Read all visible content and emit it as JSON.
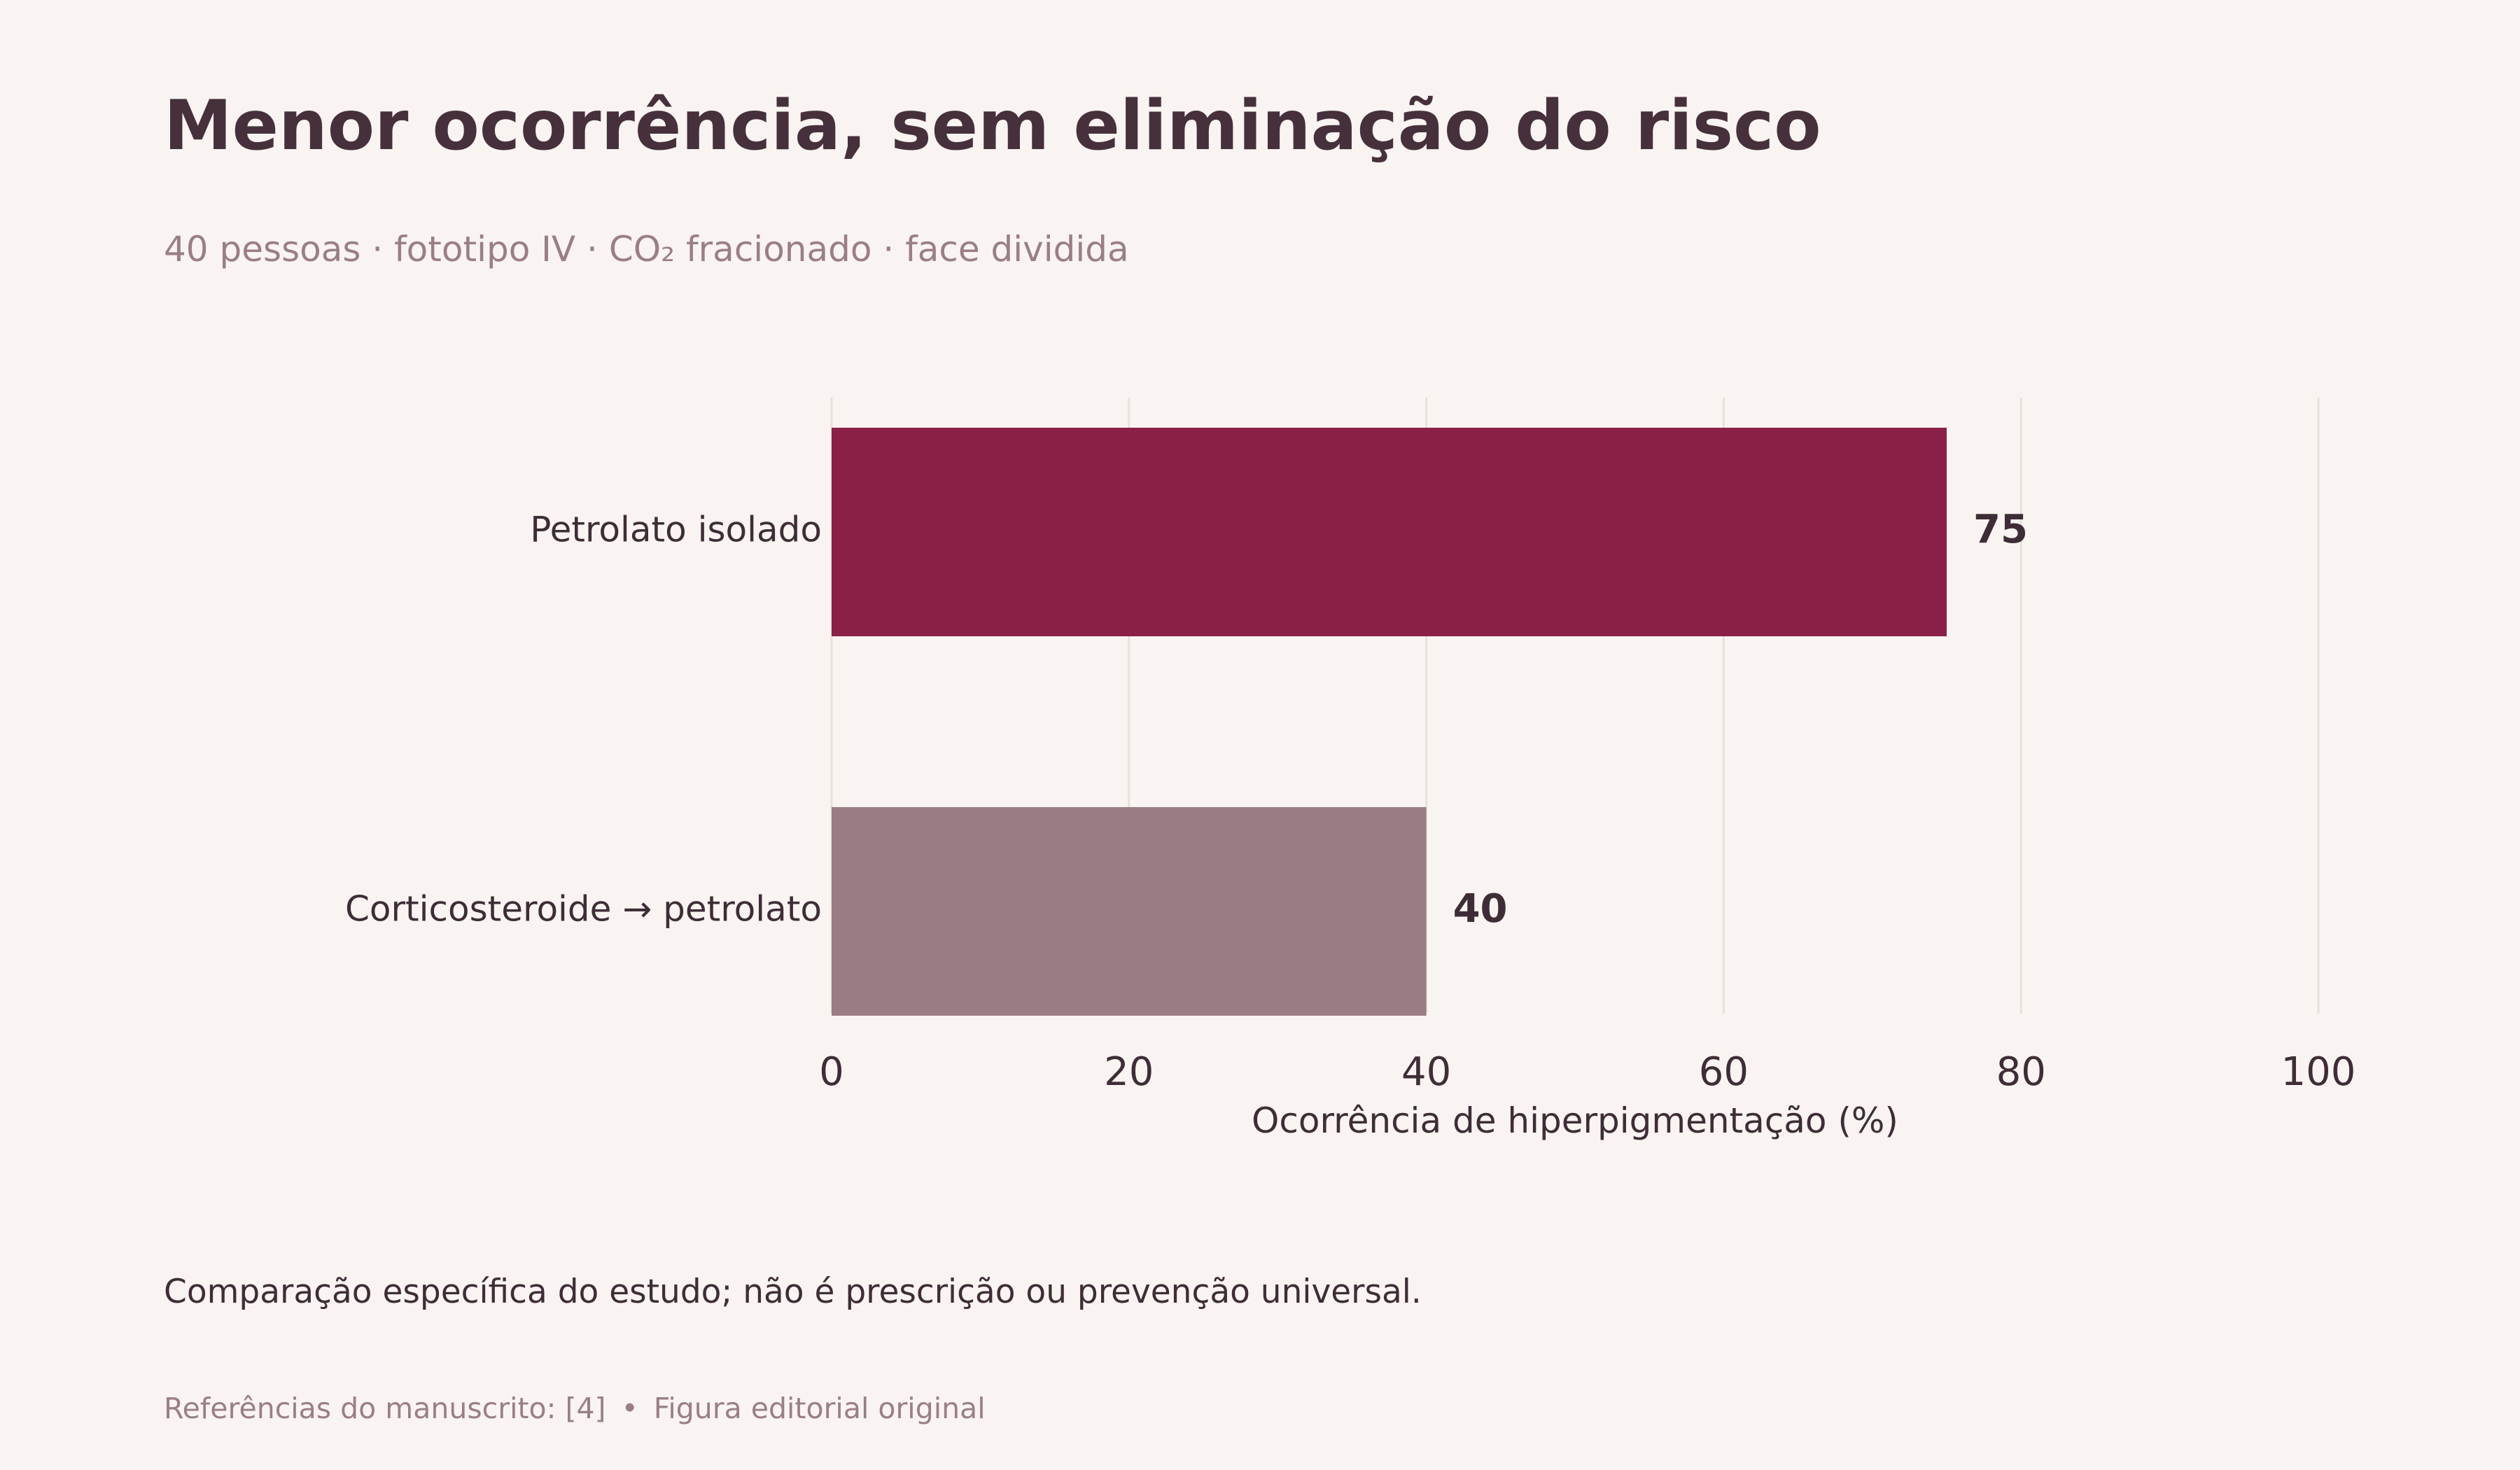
{
  "header": {
    "title": "Menor ocorrência, sem eliminação do risco",
    "subtitle": "40 pessoas · fototipo IV · CO₂ fracionado · face dividida"
  },
  "chart_data": {
    "type": "bar",
    "orientation": "horizontal",
    "categories": [
      "Petrolato isolado",
      "Corticosteroide → petrolato"
    ],
    "values": [
      75,
      40
    ],
    "value_labels": [
      "75",
      "40"
    ],
    "bar_colors": [
      "#8a2048",
      "#9a7c83"
    ],
    "xlabel": "Ocorrência de hiperpigmentação (%)",
    "ylabel": "",
    "xlim": [
      0,
      100
    ],
    "xticks": [
      0,
      20,
      40,
      60,
      80,
      100
    ],
    "grid": "vertical",
    "legend": "none"
  },
  "note": "Comparação específica do estudo; não é prescrição ou prevenção universal.",
  "footer": {
    "references": "Referências do manuscrito: [4]",
    "separator": "•",
    "credit": "Figura editorial original"
  },
  "colors": {
    "background": "#f9f4f1",
    "text": "#3e2d36",
    "muted": "#9a7e87",
    "grid": "#e8e0dc"
  }
}
